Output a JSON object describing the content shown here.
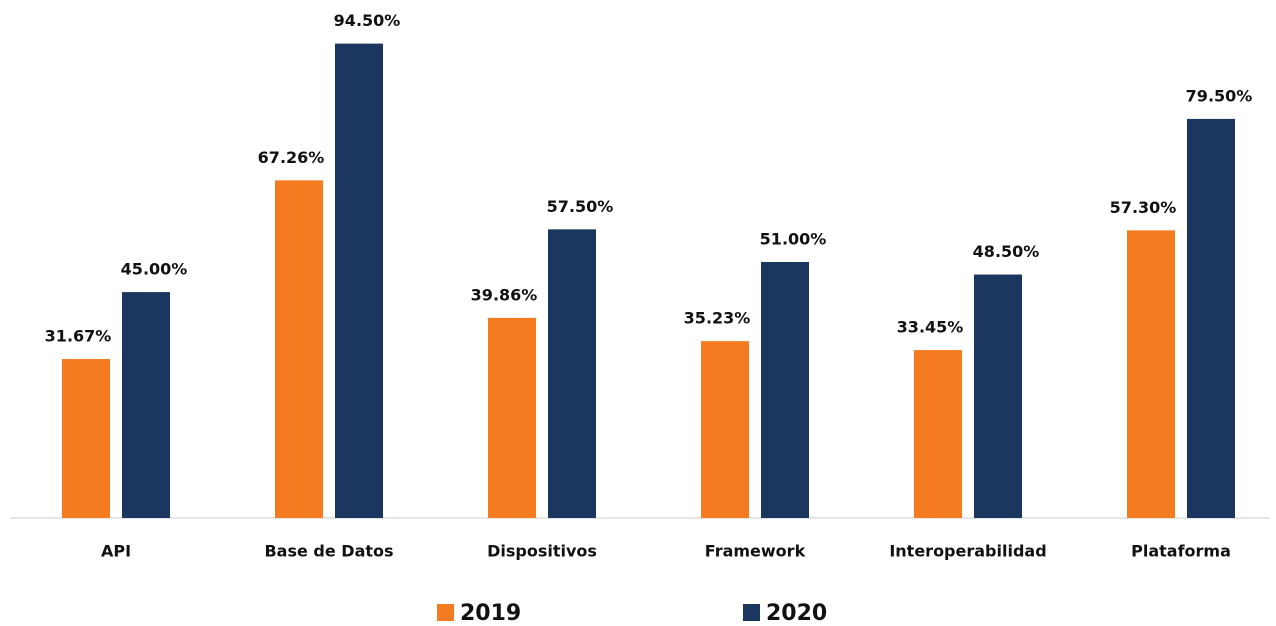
{
  "chart_data": {
    "type": "bar",
    "categories": [
      "API",
      "Base de Datos",
      "Dispositivos",
      "Framework",
      "Interoperabilidad",
      "Plataforma"
    ],
    "series": [
      {
        "name": "2019",
        "color": "#f47b20",
        "values": [
          31.67,
          67.26,
          39.86,
          35.23,
          33.45,
          57.3
        ],
        "value_labels": [
          "31.67%",
          "67.26%",
          "39.86%",
          "35.23%",
          "33.45%",
          "57.30%"
        ]
      },
      {
        "name": "2020",
        "color": "#1b365f",
        "values": [
          45.0,
          94.5,
          57.5,
          51.0,
          48.5,
          79.5
        ],
        "value_labels": [
          "45.00%",
          "94.50%",
          "57.50%",
          "51.00%",
          "48.50%",
          "79.50%"
        ]
      }
    ],
    "ylim": [
      0,
      100
    ],
    "legend": "bottom"
  }
}
